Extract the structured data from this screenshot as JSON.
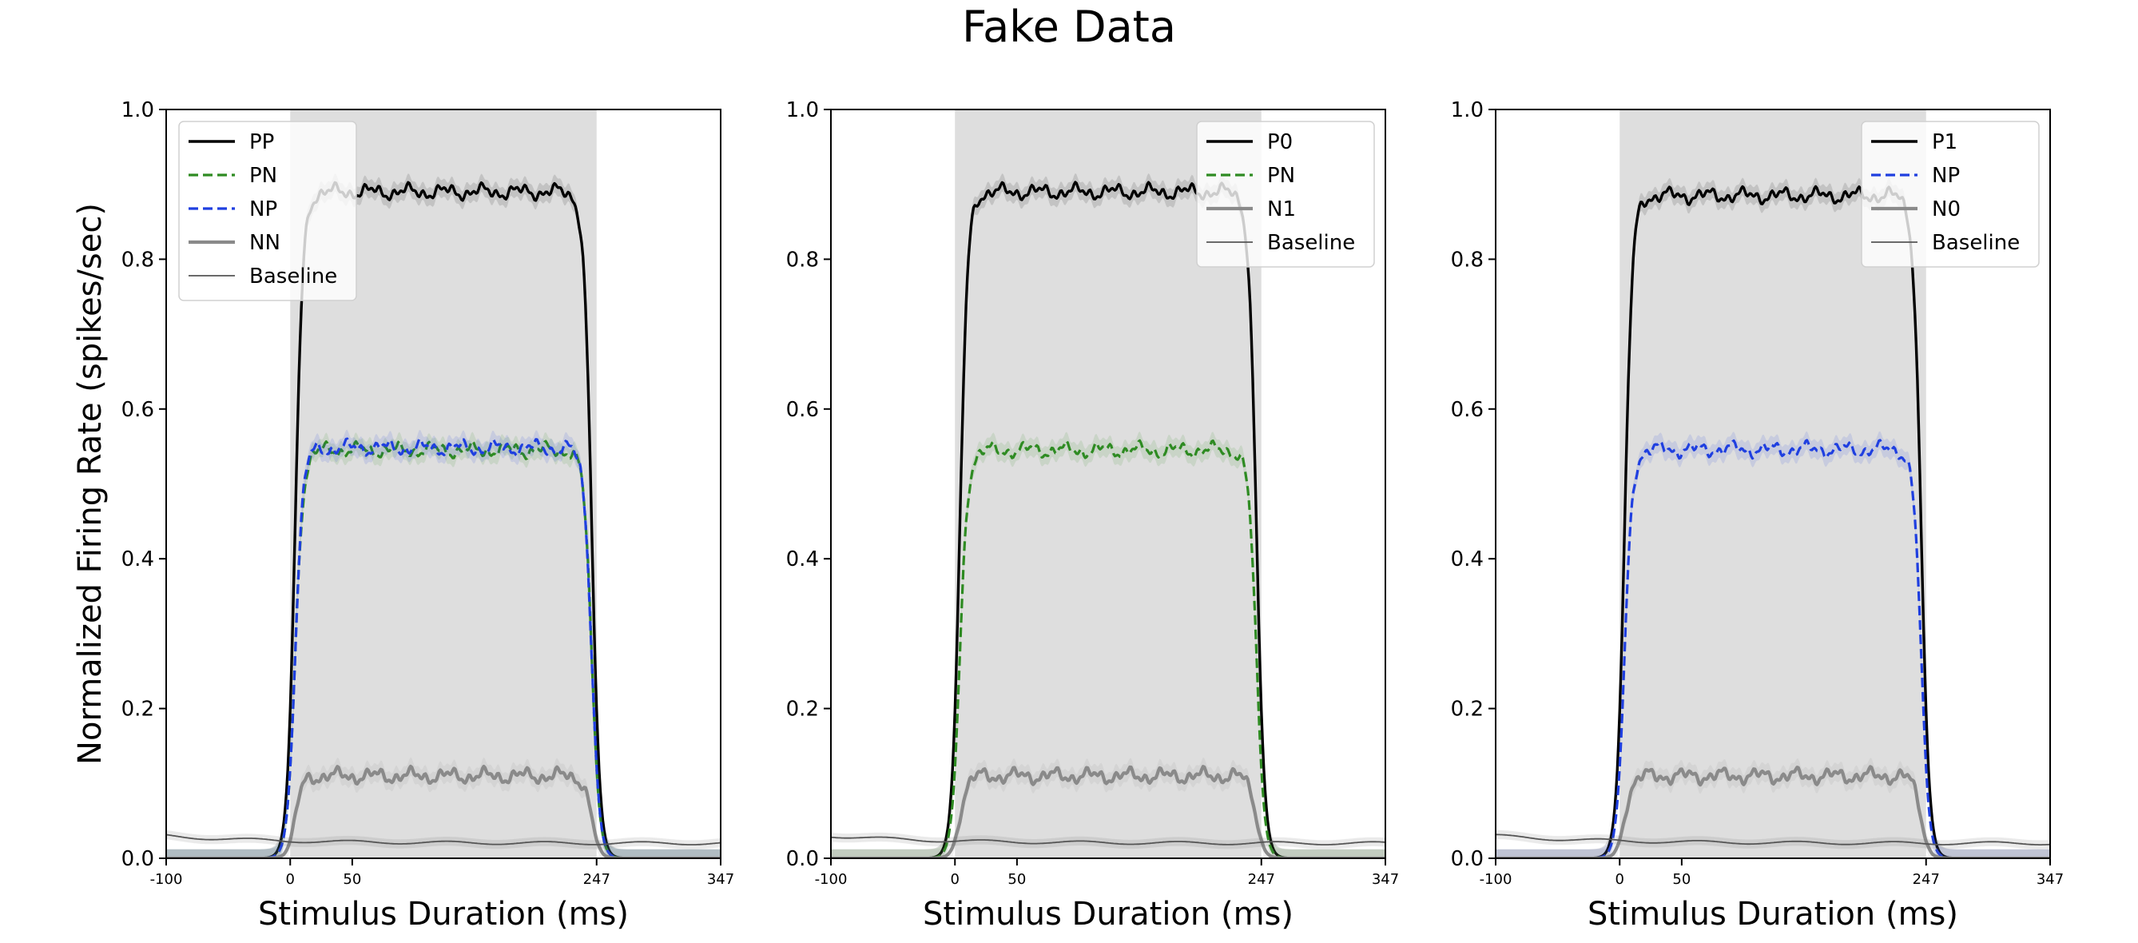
{
  "figure": {
    "suptitle": "Fake Data"
  },
  "chart_data": [
    {
      "type": "line",
      "xlabel": "Stimulus Duration (ms)",
      "ylabel": "Normalized Firing Rate (spikes/sec)",
      "xlim": [
        -100,
        347
      ],
      "ylim": [
        0,
        1.0
      ],
      "xticks": [
        -100,
        0,
        50,
        247,
        347
      ],
      "yticks": [
        0.0,
        0.2,
        0.4,
        0.6,
        0.8,
        1.0
      ],
      "stimulus_window": [
        0,
        247
      ],
      "legend_position": "upper-left",
      "series": [
        {
          "name": "PP",
          "color": "#000000",
          "style": "solid",
          "level": 0.89,
          "baseline": 0.0
        },
        {
          "name": "PN",
          "color": "#2e8b22",
          "style": "dashed",
          "level": 0.545,
          "baseline": 0.0
        },
        {
          "name": "NP",
          "color": "#1f3fe0",
          "style": "dashed",
          "level": 0.548,
          "baseline": 0.0
        },
        {
          "name": "NN",
          "color": "#8a8a8a",
          "style": "solid",
          "level": 0.11,
          "baseline": 0.0
        },
        {
          "name": "Baseline",
          "color": "#555555",
          "style": "thin",
          "level": 0.02,
          "baseline": 0.03
        }
      ]
    },
    {
      "type": "line",
      "xlabel": "Stimulus Duration (ms)",
      "ylabel": "",
      "xlim": [
        -100,
        347
      ],
      "ylim": [
        0,
        1.0
      ],
      "xticks": [
        -100,
        0,
        50,
        247,
        347
      ],
      "yticks": [
        0.0,
        0.2,
        0.4,
        0.6,
        0.8,
        1.0
      ],
      "stimulus_window": [
        0,
        247
      ],
      "legend_position": "upper-right",
      "series": [
        {
          "name": "P0",
          "color": "#000000",
          "style": "solid",
          "level": 0.89,
          "baseline": 0.0
        },
        {
          "name": "PN",
          "color": "#2e8b22",
          "style": "dashed",
          "level": 0.545,
          "baseline": 0.0
        },
        {
          "name": "N1",
          "color": "#8a8a8a",
          "style": "solid",
          "level": 0.11,
          "baseline": 0.0
        },
        {
          "name": "Baseline",
          "color": "#555555",
          "style": "thin",
          "level": 0.02,
          "baseline": 0.03
        }
      ]
    },
    {
      "type": "line",
      "xlabel": "Stimulus Duration (ms)",
      "ylabel": "",
      "xlim": [
        -100,
        347
      ],
      "ylim": [
        0,
        1.0
      ],
      "xticks": [
        -100,
        0,
        50,
        247,
        347
      ],
      "yticks": [
        0.0,
        0.2,
        0.4,
        0.6,
        0.8,
        1.0
      ],
      "stimulus_window": [
        0,
        247
      ],
      "legend_position": "upper-right",
      "series": [
        {
          "name": "P1",
          "color": "#000000",
          "style": "solid",
          "level": 0.885,
          "baseline": 0.0
        },
        {
          "name": "NP",
          "color": "#1f3fe0",
          "style": "dashed",
          "level": 0.546,
          "baseline": 0.0
        },
        {
          "name": "N0",
          "color": "#8a8a8a",
          "style": "solid",
          "level": 0.11,
          "baseline": 0.0
        },
        {
          "name": "Baseline",
          "color": "#555555",
          "style": "thin",
          "level": 0.02,
          "baseline": 0.03
        }
      ]
    }
  ]
}
